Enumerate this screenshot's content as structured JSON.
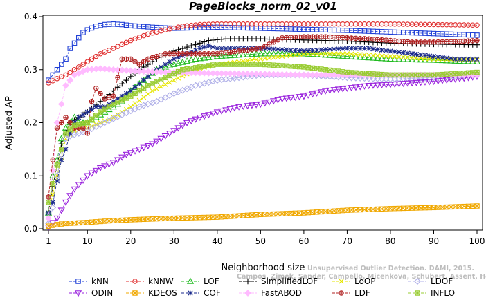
{
  "chart_data": {
    "type": "line",
    "title": "PageBlocks_norm_02_v01",
    "xlabel": "Neighborhood size",
    "ylabel": "Adjusted AP",
    "xlim": [
      1,
      100
    ],
    "ylim": [
      0,
      0.4
    ],
    "x_ticks": [
      1,
      10,
      20,
      30,
      40,
      50,
      60,
      70,
      80,
      90,
      100
    ],
    "y_ticks": [
      0.0,
      0.1,
      0.2,
      0.3,
      0.4
    ],
    "y_tick_labels": [
      "0.0",
      "0.1",
      "0.2",
      "0.3",
      "0.4"
    ],
    "grid": false,
    "legend_position": "bottom",
    "watermark": [
      "Unsupervised Outlier Detection. DAMI, 2015.",
      "Campos, Zimek, Sander, Campello, Micenkova, Schubert, Assent, Houle"
    ],
    "series": [
      {
        "name": "kNN",
        "color": "#1f3fd6",
        "marker": "square",
        "points": [
          [
            1,
            0.28
          ],
          [
            2,
            0.29
          ],
          [
            3,
            0.3
          ],
          [
            4,
            0.31
          ],
          [
            5,
            0.32
          ],
          [
            6,
            0.34
          ],
          [
            7,
            0.35
          ],
          [
            8,
            0.36
          ],
          [
            9,
            0.37
          ],
          [
            10,
            0.375
          ],
          [
            12,
            0.382
          ],
          [
            14,
            0.385
          ],
          [
            16,
            0.386
          ],
          [
            18,
            0.385
          ],
          [
            20,
            0.383
          ],
          [
            25,
            0.38
          ],
          [
            30,
            0.378
          ],
          [
            35,
            0.379
          ],
          [
            40,
            0.38
          ],
          [
            50,
            0.378
          ],
          [
            60,
            0.376
          ],
          [
            70,
            0.374
          ],
          [
            80,
            0.371
          ],
          [
            90,
            0.368
          ],
          [
            100,
            0.365
          ]
        ]
      },
      {
        "name": "kNNW",
        "color": "#e03030",
        "marker": "circle",
        "points": [
          [
            1,
            0.275
          ],
          [
            3,
            0.283
          ],
          [
            5,
            0.29
          ],
          [
            7,
            0.3
          ],
          [
            10,
            0.315
          ],
          [
            13,
            0.33
          ],
          [
            16,
            0.34
          ],
          [
            20,
            0.355
          ],
          [
            24,
            0.367
          ],
          [
            28,
            0.375
          ],
          [
            32,
            0.382
          ],
          [
            36,
            0.385
          ],
          [
            40,
            0.386
          ],
          [
            50,
            0.386
          ],
          [
            60,
            0.386
          ],
          [
            70,
            0.386
          ],
          [
            80,
            0.386
          ],
          [
            90,
            0.385
          ],
          [
            100,
            0.384
          ]
        ]
      },
      {
        "name": "LOF",
        "color": "#22bb22",
        "marker": "triangle",
        "points": [
          [
            1,
            0.03
          ],
          [
            2,
            0.1
          ],
          [
            3,
            0.13
          ],
          [
            4,
            0.17
          ],
          [
            5,
            0.19
          ],
          [
            6,
            0.2
          ],
          [
            7,
            0.21
          ],
          [
            8,
            0.2
          ],
          [
            9,
            0.2
          ],
          [
            10,
            0.2
          ],
          [
            12,
            0.21
          ],
          [
            14,
            0.22
          ],
          [
            16,
            0.23
          ],
          [
            18,
            0.24
          ],
          [
            20,
            0.26
          ],
          [
            23,
            0.28
          ],
          [
            26,
            0.3
          ],
          [
            30,
            0.31
          ],
          [
            35,
            0.32
          ],
          [
            40,
            0.325
          ],
          [
            50,
            0.33
          ],
          [
            60,
            0.33
          ],
          [
            70,
            0.325
          ],
          [
            80,
            0.32
          ],
          [
            90,
            0.318
          ],
          [
            100,
            0.315
          ]
        ]
      },
      {
        "name": "SimplifiedLOF",
        "color": "#000000",
        "marker": "plus",
        "points": [
          [
            1,
            0.03
          ],
          [
            2,
            0.08
          ],
          [
            3,
            0.12
          ],
          [
            4,
            0.16
          ],
          [
            5,
            0.18
          ],
          [
            6,
            0.2
          ],
          [
            7,
            0.205
          ],
          [
            8,
            0.21
          ],
          [
            9,
            0.215
          ],
          [
            10,
            0.22
          ],
          [
            13,
            0.24
          ],
          [
            16,
            0.26
          ],
          [
            19,
            0.28
          ],
          [
            22,
            0.3
          ],
          [
            26,
            0.32
          ],
          [
            30,
            0.335
          ],
          [
            34,
            0.345
          ],
          [
            38,
            0.355
          ],
          [
            42,
            0.358
          ],
          [
            50,
            0.358
          ],
          [
            55,
            0.357
          ],
          [
            60,
            0.356
          ],
          [
            70,
            0.354
          ],
          [
            80,
            0.35
          ],
          [
            90,
            0.348
          ],
          [
            100,
            0.347
          ]
        ]
      },
      {
        "name": "LoOP",
        "color": "#e6e600",
        "marker": "x",
        "points": [
          [
            1,
            0.03
          ],
          [
            3,
            0.1
          ],
          [
            5,
            0.17
          ],
          [
            7,
            0.185
          ],
          [
            10,
            0.19
          ],
          [
            13,
            0.2
          ],
          [
            16,
            0.21
          ],
          [
            20,
            0.23
          ],
          [
            25,
            0.26
          ],
          [
            30,
            0.28
          ],
          [
            35,
            0.3
          ],
          [
            40,
            0.31
          ],
          [
            50,
            0.32
          ],
          [
            60,
            0.33
          ],
          [
            70,
            0.33
          ],
          [
            80,
            0.325
          ],
          [
            90,
            0.32
          ],
          [
            100,
            0.318
          ]
        ]
      },
      {
        "name": "LDOF",
        "color": "#b0b0e8",
        "marker": "diamond",
        "points": [
          [
            1,
            0.01
          ],
          [
            2,
            0.04
          ],
          [
            3,
            0.1
          ],
          [
            4,
            0.14
          ],
          [
            5,
            0.17
          ],
          [
            6,
            0.175
          ],
          [
            8,
            0.18
          ],
          [
            10,
            0.185
          ],
          [
            14,
            0.2
          ],
          [
            18,
            0.215
          ],
          [
            22,
            0.23
          ],
          [
            26,
            0.24
          ],
          [
            30,
            0.255
          ],
          [
            35,
            0.27
          ],
          [
            40,
            0.28
          ],
          [
            50,
            0.29
          ],
          [
            60,
            0.29
          ],
          [
            70,
            0.285
          ],
          [
            80,
            0.282
          ],
          [
            90,
            0.285
          ],
          [
            100,
            0.29
          ]
        ]
      },
      {
        "name": "ODIN",
        "color": "#9922dd",
        "marker": "triangle-down",
        "points": [
          [
            1,
            0.003
          ],
          [
            3,
            0.02
          ],
          [
            5,
            0.05
          ],
          [
            7,
            0.075
          ],
          [
            10,
            0.1
          ],
          [
            13,
            0.115
          ],
          [
            16,
            0.125
          ],
          [
            19,
            0.14
          ],
          [
            22,
            0.15
          ],
          [
            25,
            0.16
          ],
          [
            28,
            0.175
          ],
          [
            30,
            0.185
          ],
          [
            33,
            0.2
          ],
          [
            36,
            0.21
          ],
          [
            40,
            0.22
          ],
          [
            45,
            0.23
          ],
          [
            50,
            0.235
          ],
          [
            55,
            0.245
          ],
          [
            60,
            0.25
          ],
          [
            65,
            0.26
          ],
          [
            70,
            0.265
          ],
          [
            75,
            0.27
          ],
          [
            80,
            0.272
          ],
          [
            85,
            0.275
          ],
          [
            90,
            0.278
          ],
          [
            95,
            0.282
          ],
          [
            100,
            0.287
          ]
        ]
      },
      {
        "name": "KDEOS",
        "color": "#f0a800",
        "marker": "square-x",
        "points": [
          [
            1,
            0.005
          ],
          [
            3,
            0.008
          ],
          [
            5,
            0.01
          ],
          [
            10,
            0.012
          ],
          [
            15,
            0.015
          ],
          [
            20,
            0.017
          ],
          [
            30,
            0.02
          ],
          [
            40,
            0.022
          ],
          [
            50,
            0.027
          ],
          [
            60,
            0.03
          ],
          [
            70,
            0.035
          ],
          [
            80,
            0.038
          ],
          [
            90,
            0.04
          ],
          [
            100,
            0.043
          ]
        ]
      },
      {
        "name": "COF",
        "color": "#1a2a8c",
        "marker": "star",
        "points": [
          [
            1,
            0.03
          ],
          [
            2,
            0.05
          ],
          [
            3,
            0.09
          ],
          [
            4,
            0.13
          ],
          [
            5,
            0.15
          ],
          [
            6,
            0.18
          ],
          [
            7,
            0.2
          ],
          [
            8,
            0.21
          ],
          [
            9,
            0.215
          ],
          [
            10,
            0.22
          ],
          [
            12,
            0.23
          ],
          [
            14,
            0.23
          ],
          [
            16,
            0.24
          ],
          [
            18,
            0.25
          ],
          [
            20,
            0.26
          ],
          [
            23,
            0.28
          ],
          [
            26,
            0.3
          ],
          [
            30,
            0.32
          ],
          [
            33,
            0.33
          ],
          [
            36,
            0.34
          ],
          [
            38,
            0.345
          ],
          [
            40,
            0.34
          ],
          [
            45,
            0.34
          ],
          [
            50,
            0.34
          ],
          [
            55,
            0.338
          ],
          [
            60,
            0.335
          ],
          [
            65,
            0.338
          ],
          [
            70,
            0.34
          ],
          [
            75,
            0.34
          ],
          [
            80,
            0.335
          ],
          [
            85,
            0.33
          ],
          [
            90,
            0.325
          ],
          [
            95,
            0.32
          ],
          [
            100,
            0.32
          ]
        ]
      },
      {
        "name": "FastABOD",
        "color": "#ffbbff",
        "marker": "diamond-filled",
        "points": [
          [
            1,
            0.02
          ],
          [
            3,
            0.2
          ],
          [
            5,
            0.27
          ],
          [
            7,
            0.29
          ],
          [
            10,
            0.3
          ],
          [
            13,
            0.302
          ],
          [
            16,
            0.3
          ],
          [
            20,
            0.298
          ],
          [
            25,
            0.296
          ],
          [
            30,
            0.295
          ],
          [
            40,
            0.293
          ],
          [
            50,
            0.292
          ],
          [
            60,
            0.29
          ],
          [
            70,
            0.29
          ],
          [
            80,
            0.29
          ],
          [
            90,
            0.29
          ],
          [
            100,
            0.29
          ]
        ]
      },
      {
        "name": "LDF",
        "color": "#b02020",
        "marker": "circle-plus",
        "points": [
          [
            1,
            0.06
          ],
          [
            2,
            0.13
          ],
          [
            3,
            0.19
          ],
          [
            4,
            0.2
          ],
          [
            5,
            0.21
          ],
          [
            6,
            0.2
          ],
          [
            7,
            0.19
          ],
          [
            8,
            0.19
          ],
          [
            9,
            0.19
          ],
          [
            10,
            0.18
          ],
          [
            11,
            0.24
          ],
          [
            12,
            0.265
          ],
          [
            14,
            0.245
          ],
          [
            16,
            0.25
          ],
          [
            18,
            0.32
          ],
          [
            20,
            0.32
          ],
          [
            22,
            0.31
          ],
          [
            24,
            0.32
          ],
          [
            26,
            0.325
          ],
          [
            28,
            0.33
          ],
          [
            30,
            0.33
          ],
          [
            35,
            0.33
          ],
          [
            40,
            0.33
          ],
          [
            45,
            0.335
          ],
          [
            50,
            0.34
          ],
          [
            55,
            0.36
          ],
          [
            60,
            0.362
          ],
          [
            65,
            0.362
          ],
          [
            70,
            0.36
          ],
          [
            75,
            0.358
          ],
          [
            80,
            0.355
          ],
          [
            85,
            0.352
          ],
          [
            90,
            0.352
          ],
          [
            95,
            0.353
          ],
          [
            100,
            0.355
          ]
        ]
      },
      {
        "name": "INFLO",
        "color": "#99cc33",
        "marker": "square-star",
        "points": [
          [
            1,
            0.05
          ],
          [
            3,
            0.12
          ],
          [
            5,
            0.18
          ],
          [
            7,
            0.195
          ],
          [
            10,
            0.2
          ],
          [
            13,
            0.22
          ],
          [
            16,
            0.235
          ],
          [
            20,
            0.25
          ],
          [
            24,
            0.27
          ],
          [
            28,
            0.285
          ],
          [
            32,
            0.3
          ],
          [
            36,
            0.305
          ],
          [
            40,
            0.31
          ],
          [
            50,
            0.31
          ],
          [
            60,
            0.305
          ],
          [
            70,
            0.295
          ],
          [
            80,
            0.29
          ],
          [
            90,
            0.29
          ],
          [
            100,
            0.295
          ]
        ]
      }
    ]
  }
}
